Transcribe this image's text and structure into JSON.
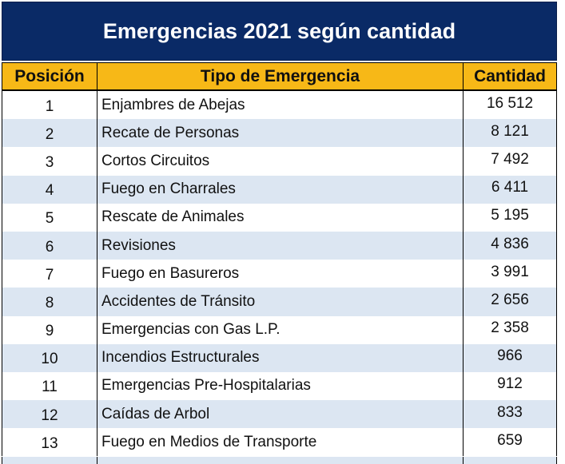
{
  "title": "Emergencias 2021 según cantidad",
  "headers": {
    "position": "Posición",
    "type": "Tipo de Emergencia",
    "quantity": "Cantidad"
  },
  "rows": [
    {
      "position": "1",
      "type": "Enjambres de Abejas",
      "quantity": "16 512"
    },
    {
      "position": "2",
      "type": "Recate de Personas",
      "quantity": "8 121"
    },
    {
      "position": "3",
      "type": "Cortos Circuitos",
      "quantity": "7 492"
    },
    {
      "position": "4",
      "type": "Fuego en Charrales",
      "quantity": "6 411"
    },
    {
      "position": "5",
      "type": "Rescate de Animales",
      "quantity": "5 195"
    },
    {
      "position": "6",
      "type": "Revisiones",
      "quantity": "4 836"
    },
    {
      "position": "7",
      "type": "Fuego en Basureros",
      "quantity": "3 991"
    },
    {
      "position": "8",
      "type": "Accidentes de Tránsito",
      "quantity": "2 656"
    },
    {
      "position": "9",
      "type": "Emergencias con Gas L.P.",
      "quantity": "2 358"
    },
    {
      "position": "10",
      "type": "Incendios Estructurales",
      "quantity": "966"
    },
    {
      "position": "11",
      "type": "Emergencias Pre-Hospitalarias",
      "quantity": "912"
    },
    {
      "position": "12",
      "type": "Caídas de Arbol",
      "quantity": "833"
    },
    {
      "position": "13",
      "type": "Fuego en Medios de Transporte",
      "quantity": "659"
    }
  ],
  "colors": {
    "title_bg": "#0a2a66",
    "header_bg": "#f7b817",
    "stripe_bg": "#dce6f2"
  }
}
